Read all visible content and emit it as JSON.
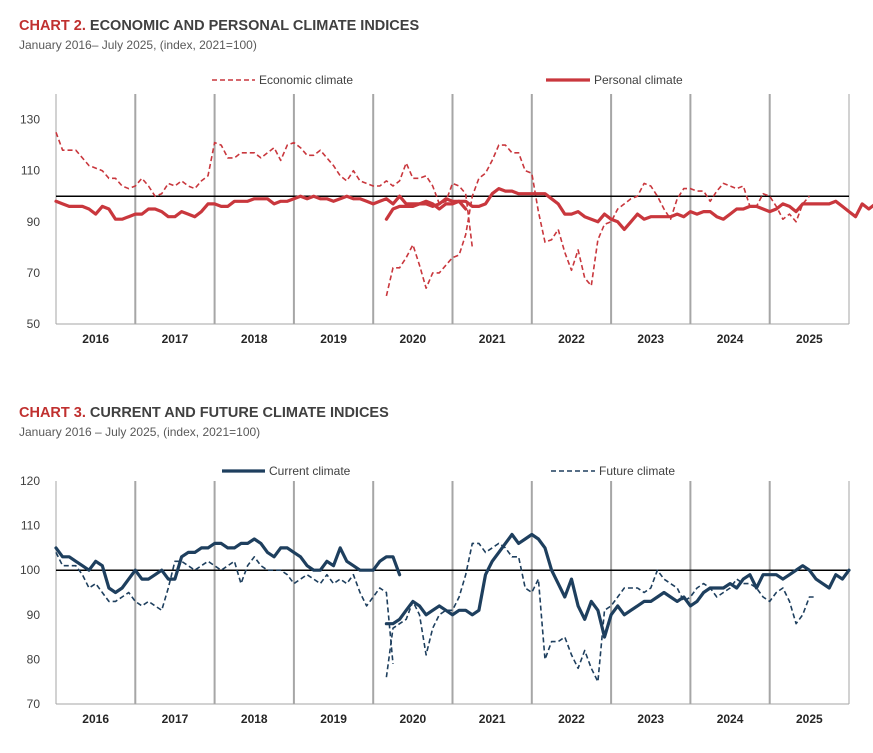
{
  "chart_data": [
    {
      "type": "line",
      "title_number": "CHART 2.",
      "title_text": "ECONOMIC AND PERSONAL CLIMATE INDICES",
      "subtitle": "January 2016– July 2025, (index, 2021=100)",
      "xlabel": "",
      "ylabel": "",
      "ylim": [
        50,
        140
      ],
      "yticks": [
        50,
        70,
        90,
        110,
        130
      ],
      "reference_line": 100,
      "x_years": [
        "2016",
        "2017",
        "2018",
        "2019",
        "2020",
        "2021",
        "2022",
        "2023",
        "2024",
        "2025"
      ],
      "x_start": 2016.0,
      "x_end": 2026.0,
      "grid": "vertical year separators",
      "legend": "top",
      "series": [
        {
          "name": "Economic climate",
          "color": "#c9373d",
          "style": "dashed",
          "segments": [
            {
              "start": 2016.0,
              "values": [
                125,
                118,
                118,
                118,
                115,
                112,
                111,
                110,
                107,
                107,
                104,
                103,
                104,
                107,
                104,
                100,
                101,
                105,
                104,
                106,
                104,
                103,
                106,
                108,
                121,
                120,
                115,
                115,
                117,
                117,
                117,
                115,
                117,
                119,
                114,
                120,
                121,
                119,
                116,
                116,
                118,
                115,
                112,
                108,
                106,
                110,
                106,
                105,
                104,
                104,
                106,
                104,
                106,
                113,
                107,
                107,
                108,
                104,
                97,
                98,
                105,
                104,
                101,
                80
              ]
            },
            {
              "start": 2020.1667,
              "values": [
                61,
                72,
                72,
                76,
                81,
                73,
                64,
                70,
                70,
                73,
                76,
                77,
                85,
                100,
                107,
                109,
                114,
                120,
                120,
                117,
                117,
                110,
                109,
                94,
                82,
                83,
                87,
                78,
                71,
                79,
                68,
                65,
                83,
                89,
                90,
                95,
                97,
                99,
                100,
                105,
                104,
                100,
                95,
                91,
                99,
                103,
                103,
                102,
                102,
                98,
                102,
                105,
                104,
                103,
                104,
                96,
                96,
                101,
                100,
                96,
                91,
                93,
                90,
                97,
                100
              ]
            }
          ]
        },
        {
          "name": "Personal climate",
          "color": "#c9373d",
          "style": "solid",
          "segments": [
            {
              "start": 2016.0,
              "values": [
                98,
                97,
                96,
                96,
                96,
                95,
                93,
                96,
                95,
                91,
                91,
                92,
                93,
                93,
                95,
                95,
                94,
                92,
                92,
                94,
                93,
                92,
                94,
                97,
                97,
                96,
                96,
                98,
                98,
                98,
                99,
                99,
                99,
                97,
                98,
                98,
                99,
                100,
                99,
                100,
                99,
                99,
                98,
                99,
                100,
                99,
                99,
                98,
                97,
                98,
                99,
                97,
                100,
                97,
                97,
                97,
                97,
                96,
                97,
                99,
                98,
                98,
                95
              ]
            },
            {
              "start": 2020.1667,
              "values": [
                91,
                95,
                96,
                96,
                96,
                97,
                98,
                97,
                95,
                97,
                97,
                98,
                98,
                96,
                96,
                97,
                101,
                103,
                102,
                102,
                101,
                101,
                101,
                101,
                101,
                99,
                97,
                93,
                93,
                94,
                92,
                91,
                90,
                93,
                91,
                90,
                87,
                90,
                93,
                91,
                92,
                92,
                92,
                92,
                93,
                92,
                94,
                93,
                94,
                94,
                92,
                91,
                93,
                95,
                95,
                96,
                96,
                95,
                94,
                95,
                97,
                96,
                94,
                97,
                97,
                97,
                97,
                97,
                98,
                96,
                94,
                92,
                97,
                95,
                97
              ]
            }
          ]
        }
      ]
    },
    {
      "type": "line",
      "title_number": "CHART 3.",
      "title_text": "CURRENT AND FUTURE CLIMATE INDICES",
      "subtitle": "January 2016 – July 2025, (index, 2021=100)",
      "xlabel": "",
      "ylabel": "",
      "ylim": [
        70,
        120
      ],
      "yticks": [
        70,
        80,
        90,
        100,
        110,
        120
      ],
      "reference_line": 100,
      "x_years": [
        "2016",
        "2017",
        "2018",
        "2019",
        "2020",
        "2021",
        "2022",
        "2023",
        "2024",
        "2025"
      ],
      "x_start": 2016.0,
      "x_end": 2026.0,
      "grid": "vertical year separators",
      "legend": "top",
      "series": [
        {
          "name": "Current climate",
          "color": "#1e3f5e",
          "style": "solid",
          "segments": [
            {
              "start": 2016.0,
              "values": [
                105,
                103,
                103,
                102,
                101,
                100,
                102,
                101,
                96,
                95,
                96,
                98,
                100,
                98,
                98,
                99,
                100,
                98,
                98,
                103,
                104,
                104,
                105,
                105,
                106,
                106,
                105,
                105,
                106,
                106,
                107,
                106,
                104,
                103,
                105,
                105,
                104,
                103,
                101,
                100,
                100,
                102,
                101,
                105,
                102,
                101,
                100,
                100,
                100,
                102,
                103,
                103,
                99
              ]
            },
            {
              "start": 2020.1667,
              "values": [
                88,
                88,
                89,
                91,
                93,
                92,
                90,
                91,
                92,
                91,
                90,
                91,
                91,
                90,
                91,
                99,
                102,
                104,
                106,
                108,
                106,
                107,
                108,
                107,
                105,
                100,
                97,
                94,
                98,
                92,
                89,
                93,
                91,
                85,
                90,
                92,
                90,
                91,
                92,
                93,
                93,
                94,
                95,
                94,
                93,
                94,
                92,
                93,
                95,
                96,
                96,
                96,
                97,
                96,
                98,
                99,
                96,
                99,
                99,
                99,
                98,
                99,
                100,
                101,
                100,
                98,
                97,
                96,
                99,
                98,
                100
              ]
            }
          ]
        },
        {
          "name": "Future climate",
          "color": "#1e3f5e",
          "style": "dashed",
          "segments": [
            {
              "start": 2016.0,
              "values": [
                104,
                101,
                101,
                101,
                99,
                96,
                97,
                95,
                93,
                93,
                94,
                95,
                93,
                92,
                93,
                92,
                91,
                96,
                102,
                102,
                101,
                100,
                101,
                102,
                101,
                100,
                101,
                102,
                97,
                101,
                103,
                101,
                100,
                100,
                100,
                99,
                97,
                98,
                99,
                98,
                97,
                99,
                97,
                98,
                97,
                99,
                95,
                92,
                94,
                96,
                95,
                79
              ]
            },
            {
              "start": 2020.1667,
              "values": [
                76,
                87,
                88,
                89,
                93,
                90,
                81,
                87,
                90,
                91,
                91,
                94,
                99,
                106,
                106,
                104,
                105,
                106,
                105,
                103,
                103,
                96,
                95,
                98,
                80,
                84,
                84,
                85,
                81,
                78,
                82,
                78,
                75,
                91,
                92,
                94,
                96,
                96,
                96,
                95,
                96,
                100,
                98,
                97,
                96,
                93,
                94,
                96,
                97,
                96,
                94,
                95,
                96,
                98,
                97,
                97,
                96,
                94,
                93,
                95,
                96,
                93,
                88,
                90,
                94,
                94
              ]
            }
          ]
        }
      ]
    }
  ]
}
